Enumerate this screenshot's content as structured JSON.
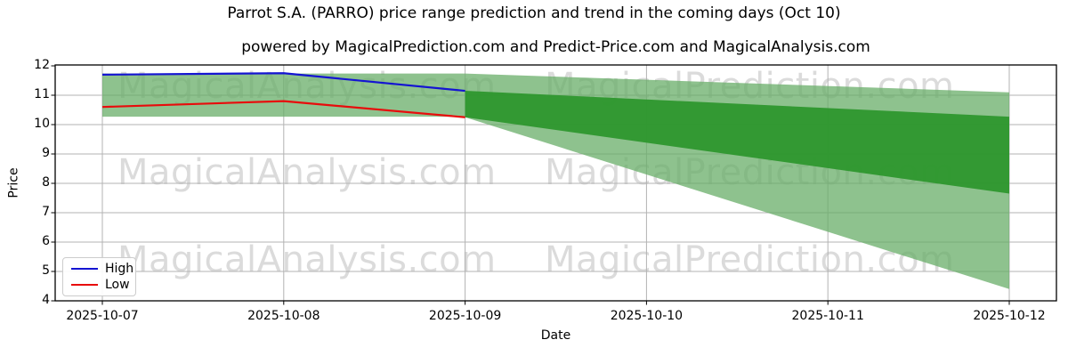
{
  "title": "Parrot S.A. (PARRO) price range prediction and trend in the coming days (Oct 10)",
  "subtitle": "powered by MagicalPrediction.com and Predict-Price.com and MagicalAnalysis.com",
  "watermarks": {
    "left_text": "MagicalAnalysis.com",
    "right_text": "MagicalPrediction.com"
  },
  "legend": {
    "items": [
      {
        "label": "High",
        "color": "#1414d2"
      },
      {
        "label": "Low",
        "color": "#e80c0c"
      }
    ]
  },
  "chart_data": {
    "type": "line",
    "title": "Parrot S.A. (PARRO) price range prediction and trend in the coming days (Oct 10)",
    "xlabel": "Date",
    "ylabel": "Price",
    "x": [
      "2025-10-07",
      "2025-10-08",
      "2025-10-09",
      "2025-10-10",
      "2025-10-11",
      "2025-10-12"
    ],
    "yticks": [
      4,
      5,
      6,
      7,
      8,
      9,
      10,
      11,
      12
    ],
    "ylim": [
      4,
      12
    ],
    "grid": true,
    "legend_position": "lower left",
    "series": [
      {
        "name": "High",
        "color": "#1414d2",
        "values": [
          11.7,
          11.75,
          11.15,
          null,
          null,
          null
        ]
      },
      {
        "name": "Low",
        "color": "#e80c0c",
        "values": [
          10.6,
          10.8,
          10.25,
          null,
          null,
          null
        ]
      }
    ],
    "bands": [
      {
        "name": "observed-range",
        "color": "#68ae68",
        "opacity": 0.75,
        "x0": 0,
        "x1": 2,
        "top0": 11.74,
        "top1": 11.74,
        "bot0": 10.27,
        "bot1": 10.27
      },
      {
        "name": "forecast-outer-range",
        "color": "#68ae68",
        "opacity": 0.75,
        "x0": 2,
        "x1": 5,
        "top0": 11.74,
        "top1": 11.1,
        "bot0": 10.25,
        "bot1": 4.4
      },
      {
        "name": "forecast-inner-range",
        "color": "#2b962b",
        "opacity": 0.92,
        "x0": 2,
        "x1": 5,
        "top0": 11.15,
        "top1": 10.27,
        "bot0": 10.25,
        "bot1": 7.65
      }
    ],
    "colors": {
      "grid": "#b3b3b3",
      "spine": "#000000",
      "band_light": "#8ec28e",
      "band_dark": "#3da03d"
    }
  }
}
